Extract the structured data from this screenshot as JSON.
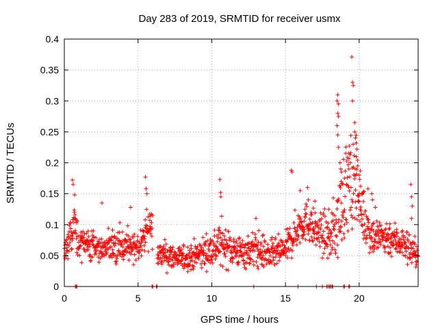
{
  "chart_data": {
    "type": "scatter",
    "title": "Day 283 of 2019, SRMTID for receiver usmx",
    "xlabel": "GPS time / hours",
    "ylabel": "SRMTID / TECUs",
    "xlim": [
      0,
      24
    ],
    "ylim": [
      0,
      0.4
    ],
    "xticks": [
      0,
      5,
      10,
      15,
      20
    ],
    "xtick_labels": [
      "0",
      "5",
      "10",
      "15",
      "20"
    ],
    "yticks": [
      0,
      0.05,
      0.1,
      0.15,
      0.2,
      0.25,
      0.3,
      0.35,
      0.4
    ],
    "ytick_labels": [
      "0",
      "0.05",
      "0.1",
      "0.15",
      "0.2",
      "0.25",
      "0.3",
      "0.35",
      "0.4"
    ],
    "grid": true,
    "marker": "+",
    "series_color": "#ff0000",
    "grid_color": "#a0a0a0",
    "series": [
      {
        "name": "SRMTID",
        "profile": {
          "hour": [
            0,
            0.5,
            0.7,
            1.0,
            2.0,
            3.0,
            4.0,
            5.0,
            5.5,
            6.0,
            6.3,
            7.0,
            8.0,
            9.0,
            10.0,
            10.5,
            11.0,
            12.0,
            13.0,
            14.0,
            15.0,
            15.5,
            16.0,
            16.5,
            17.0,
            18.0,
            18.5,
            19.0,
            19.3,
            19.5,
            19.8,
            20.0,
            20.5,
            21.0,
            22.0,
            23.0,
            23.5,
            24.0
          ],
          "median": [
            0.06,
            0.08,
            0.1,
            0.07,
            0.065,
            0.06,
            0.065,
            0.06,
            0.09,
            0.1,
            0.05,
            0.05,
            0.045,
            0.05,
            0.06,
            0.07,
            0.065,
            0.055,
            0.06,
            0.05,
            0.06,
            0.08,
            0.1,
            0.105,
            0.09,
            0.08,
            0.1,
            0.15,
            0.17,
            0.15,
            0.19,
            0.14,
            0.1,
            0.08,
            0.08,
            0.07,
            0.06,
            0.05
          ],
          "spread": [
            0.015,
            0.02,
            0.035,
            0.02,
            0.02,
            0.02,
            0.025,
            0.02,
            0.03,
            0.03,
            0.015,
            0.02,
            0.015,
            0.02,
            0.025,
            0.03,
            0.025,
            0.02,
            0.025,
            0.02,
            0.02,
            0.025,
            0.025,
            0.025,
            0.025,
            0.03,
            0.05,
            0.06,
            0.07,
            0.07,
            0.05,
            0.04,
            0.035,
            0.025,
            0.025,
            0.02,
            0.025,
            0.015
          ]
        },
        "gap_hours": [
          6.0,
          6.3
        ],
        "peaks": [
          {
            "x": 0.55,
            "y": 0.172
          },
          {
            "x": 0.6,
            "y": 0.165
          },
          {
            "x": 0.7,
            "y": 0.148
          },
          {
            "x": 2.55,
            "y": 0.135
          },
          {
            "x": 4.5,
            "y": 0.128
          },
          {
            "x": 5.5,
            "y": 0.177
          },
          {
            "x": 5.55,
            "y": 0.158
          },
          {
            "x": 5.6,
            "y": 0.15
          },
          {
            "x": 10.55,
            "y": 0.173
          },
          {
            "x": 10.6,
            "y": 0.152
          },
          {
            "x": 10.62,
            "y": 0.145
          },
          {
            "x": 13.0,
            "y": 0.11
          },
          {
            "x": 15.4,
            "y": 0.188
          },
          {
            "x": 15.45,
            "y": 0.185
          },
          {
            "x": 16.0,
            "y": 0.155
          },
          {
            "x": 16.5,
            "y": 0.16
          },
          {
            "x": 16.55,
            "y": 0.14
          },
          {
            "x": 17.0,
            "y": 0.138
          },
          {
            "x": 18.5,
            "y": 0.3
          },
          {
            "x": 18.55,
            "y": 0.31
          },
          {
            "x": 18.6,
            "y": 0.295
          },
          {
            "x": 18.55,
            "y": 0.28
          },
          {
            "x": 18.6,
            "y": 0.275
          },
          {
            "x": 18.5,
            "y": 0.26
          },
          {
            "x": 18.55,
            "y": 0.245
          },
          {
            "x": 18.6,
            "y": 0.225
          },
          {
            "x": 18.7,
            "y": 0.2
          },
          {
            "x": 18.75,
            "y": 0.19
          },
          {
            "x": 18.8,
            "y": 0.185
          },
          {
            "x": 19.0,
            "y": 0.175
          },
          {
            "x": 19.15,
            "y": 0.165
          },
          {
            "x": 19.3,
            "y": 0.19
          },
          {
            "x": 19.4,
            "y": 0.2
          },
          {
            "x": 19.5,
            "y": 0.371
          },
          {
            "x": 19.55,
            "y": 0.33
          },
          {
            "x": 19.6,
            "y": 0.325
          },
          {
            "x": 19.55,
            "y": 0.3
          },
          {
            "x": 19.7,
            "y": 0.265
          },
          {
            "x": 19.7,
            "y": 0.25
          },
          {
            "x": 19.75,
            "y": 0.24
          },
          {
            "x": 19.8,
            "y": 0.232
          },
          {
            "x": 19.85,
            "y": 0.222
          },
          {
            "x": 19.8,
            "y": 0.21
          },
          {
            "x": 19.9,
            "y": 0.195
          },
          {
            "x": 20.0,
            "y": 0.18
          },
          {
            "x": 20.1,
            "y": 0.162
          },
          {
            "x": 20.2,
            "y": 0.15
          },
          {
            "x": 20.6,
            "y": 0.158
          },
          {
            "x": 20.85,
            "y": 0.15
          },
          {
            "x": 20.9,
            "y": 0.14
          },
          {
            "x": 21.1,
            "y": 0.128
          },
          {
            "x": 23.5,
            "y": 0.165
          },
          {
            "x": 23.55,
            "y": 0.145
          },
          {
            "x": 23.6,
            "y": 0.13
          },
          {
            "x": 23.55,
            "y": 0.11
          }
        ],
        "zero_points": [
          0.75,
          0.8,
          0.85,
          5.95,
          6.0,
          6.25,
          6.3,
          12.85,
          15.85,
          17.1,
          17.5,
          17.8,
          17.9,
          18.0,
          18.05,
          18.15,
          18.2,
          18.95,
          19.0,
          19.3,
          19.35
        ]
      }
    ]
  }
}
